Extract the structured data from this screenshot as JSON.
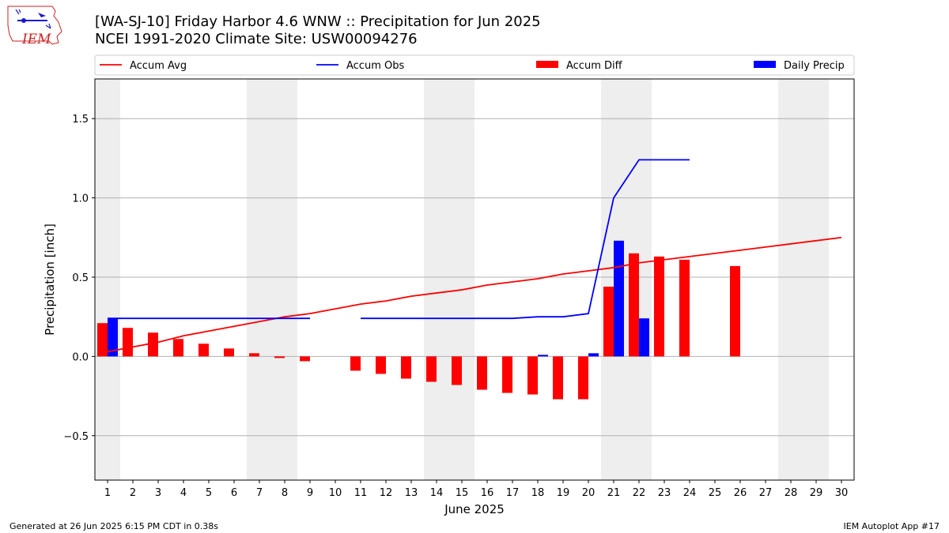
{
  "title_line1": "[WA-SJ-10] Friday Harbor 4.6 WNW :: Precipitation for Jun 2025",
  "title_line2": "NCEI 1991-2020 Climate Site: USW00094276",
  "footer_left": "Generated at 26 Jun 2025 6:15 PM CDT in 0.38s",
  "footer_right": "IEM Autoplot App #17",
  "logo_text": "IEM",
  "chart_data": {
    "type": "bar",
    "xlabel": "June 2025",
    "ylabel": "Precipitation [inch]",
    "ylim": [
      -0.78,
      1.75
    ],
    "yticks": [
      -0.5,
      0.0,
      0.5,
      1.0,
      1.5
    ],
    "ytick_labels": [
      "−0.5",
      "0.0",
      "0.5",
      "1.0",
      "1.5"
    ],
    "xlim": [
      0.5,
      30.5
    ],
    "x_tick_labels": [
      "1",
      "2",
      "3",
      "4",
      "5",
      "6",
      "7",
      "8",
      "9",
      "10",
      "11",
      "12",
      "13",
      "14",
      "15",
      "16",
      "17",
      "18",
      "19",
      "20",
      "21",
      "22",
      "23",
      "24",
      "25",
      "26",
      "27",
      "28",
      "29",
      "30"
    ],
    "grid": "horizontal",
    "weekend_shading": [
      [
        0.5,
        1.5
      ],
      [
        6.5,
        8.5
      ],
      [
        13.5,
        15.5
      ],
      [
        20.5,
        22.5
      ],
      [
        27.5,
        29.5
      ]
    ],
    "legend_position": "top",
    "colors": {
      "accum_avg": "#ff0000",
      "accum_obs": "#0000ff",
      "accum_diff": "#ff0000",
      "daily_precip": "#0000ff",
      "weekend": "#eeeeee",
      "grid": "#b0b0b0"
    },
    "series": [
      {
        "name": "Accum Avg",
        "kind": "line",
        "color": "#ff0000",
        "x": [
          1,
          2,
          3,
          4,
          5,
          6,
          7,
          8,
          9,
          10,
          11,
          12,
          13,
          14,
          15,
          16,
          17,
          18,
          19,
          20,
          21,
          22,
          23,
          24,
          25,
          26,
          27,
          28,
          29,
          30
        ],
        "values": [
          0.03,
          0.06,
          0.09,
          0.13,
          0.16,
          0.19,
          0.22,
          0.25,
          0.27,
          0.3,
          0.33,
          0.35,
          0.38,
          0.4,
          0.42,
          0.45,
          0.47,
          0.49,
          0.52,
          0.54,
          0.56,
          0.59,
          0.61,
          0.63,
          0.65,
          0.67,
          0.69,
          0.71,
          0.73,
          0.75
        ]
      },
      {
        "name": "Accum Obs",
        "kind": "line",
        "color": "#0000ff",
        "segments": [
          {
            "x": [
              1,
              2,
              3,
              4,
              5,
              6,
              7,
              8,
              9
            ],
            "values": [
              0.24,
              0.24,
              0.24,
              0.24,
              0.24,
              0.24,
              0.24,
              0.24,
              0.24
            ]
          },
          {
            "x": [
              11,
              12,
              13,
              14,
              15,
              16,
              17,
              18,
              19,
              20,
              21,
              22,
              23,
              24
            ],
            "values": [
              0.24,
              0.24,
              0.24,
              0.24,
              0.24,
              0.24,
              0.24,
              0.25,
              0.25,
              0.27,
              1.0,
              1.24,
              1.24,
              1.24
            ]
          }
        ]
      },
      {
        "name": "Accum Diff",
        "kind": "bar",
        "color": "#ff0000",
        "x": [
          1,
          2,
          3,
          4,
          5,
          6,
          7,
          8,
          9,
          11,
          12,
          13,
          14,
          15,
          16,
          17,
          18,
          19,
          20,
          21,
          22,
          23,
          24,
          26
        ],
        "values": [
          0.21,
          0.18,
          0.15,
          0.11,
          0.08,
          0.05,
          0.02,
          -0.01,
          -0.03,
          -0.09,
          -0.11,
          -0.14,
          -0.16,
          -0.18,
          -0.21,
          -0.23,
          -0.24,
          -0.27,
          -0.27,
          0.44,
          0.65,
          0.63,
          0.61,
          0.57
        ]
      },
      {
        "name": "Daily Precip",
        "kind": "bar",
        "color": "#0000ff",
        "x": [
          1,
          18,
          20,
          21,
          22
        ],
        "values": [
          0.24,
          0.01,
          0.02,
          0.73,
          0.24
        ]
      }
    ]
  }
}
